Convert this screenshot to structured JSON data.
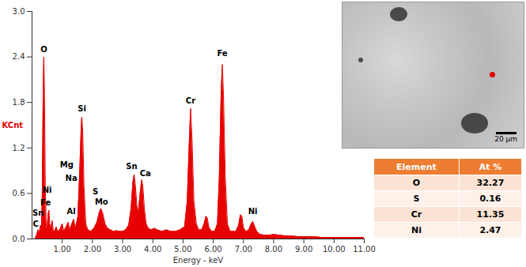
{
  "chart_data": {
    "type": "area",
    "xlabel": "Energy - keV",
    "ylabel": "KCnt",
    "color": "#e60000",
    "xlim": [
      0,
      11
    ],
    "xticks": [
      {
        "value": 1,
        "label": "1.00"
      },
      {
        "value": 2,
        "label": "2.00"
      },
      {
        "value": 3,
        "label": "3.00"
      },
      {
        "value": 4,
        "label": "4.00"
      },
      {
        "value": 5,
        "label": "5.00"
      },
      {
        "value": 6,
        "label": "6.00"
      },
      {
        "value": 7,
        "label": "7.00"
      },
      {
        "value": 8,
        "label": "8.00"
      },
      {
        "value": 9,
        "label": "9.00"
      },
      {
        "value": 10,
        "label": "10.00"
      },
      {
        "value": 11,
        "label": "11.00"
      }
    ],
    "ylim": [
      0,
      3
    ],
    "yticks": [
      {
        "value": 0,
        "label": "0.0"
      },
      0.6,
      1.2,
      1.8,
      2.4,
      {
        "value": 3,
        "label": "3.0"
      }
    ],
    "x": [
      0.1,
      0.15,
      0.2,
      0.24,
      0.28,
      0.31,
      0.34,
      0.37,
      0.39,
      0.41,
      0.44,
      0.47,
      0.5,
      0.53,
      0.56,
      0.59,
      0.63,
      0.67,
      0.7,
      0.75,
      0.8,
      0.85,
      0.92,
      1.0,
      1.05,
      1.12,
      1.2,
      1.25,
      1.32,
      1.38,
      1.44,
      1.52,
      1.58,
      1.63,
      1.65,
      1.68,
      1.72,
      1.78,
      1.85,
      1.95,
      2.05,
      2.15,
      2.22,
      2.28,
      2.34,
      2.42,
      2.5,
      2.6,
      2.7,
      2.8,
      2.9,
      3.0,
      3.1,
      3.2,
      3.28,
      3.34,
      3.38,
      3.42,
      3.47,
      3.52,
      3.58,
      3.63,
      3.67,
      3.72,
      3.78,
      3.85,
      3.95,
      4.05,
      4.15,
      4.3,
      4.45,
      4.6,
      4.75,
      4.9,
      5.05,
      5.14,
      5.2,
      5.25,
      5.3,
      5.36,
      5.44,
      5.52,
      5.62,
      5.7,
      5.76,
      5.8,
      5.86,
      5.95,
      6.05,
      6.14,
      6.2,
      6.26,
      6.3,
      6.34,
      6.4,
      6.47,
      6.56,
      6.65,
      6.75,
      6.84,
      6.9,
      6.95,
      7.0,
      7.08,
      7.18,
      7.26,
      7.31,
      7.36,
      7.44,
      7.55,
      7.7,
      7.85,
      8.0,
      8.2,
      8.4,
      8.6,
      8.8,
      9.0,
      9.3,
      9.6,
      9.9,
      10.2,
      10.5,
      10.8,
      11.0
    ],
    "values": [
      0,
      0.05,
      0.12,
      0.08,
      0.18,
      0.1,
      0.6,
      2.0,
      2.4,
      2.0,
      0.7,
      0.2,
      0.12,
      0.32,
      0.38,
      0.2,
      0.14,
      0.24,
      0.12,
      0.1,
      0.16,
      0.1,
      0.12,
      0.2,
      0.1,
      0.15,
      0.22,
      0.12,
      0.2,
      0.26,
      0.14,
      0.3,
      0.9,
      1.5,
      1.61,
      1.4,
      0.7,
      0.2,
      0.12,
      0.1,
      0.14,
      0.22,
      0.34,
      0.4,
      0.34,
      0.2,
      0.14,
      0.12,
      0.1,
      0.11,
      0.1,
      0.1,
      0.12,
      0.18,
      0.4,
      0.75,
      0.85,
      0.72,
      0.45,
      0.35,
      0.6,
      0.78,
      0.7,
      0.4,
      0.2,
      0.14,
      0.12,
      0.14,
      0.12,
      0.1,
      0.12,
      0.1,
      0.1,
      0.12,
      0.16,
      0.5,
      1.2,
      1.72,
      1.3,
      0.5,
      0.2,
      0.12,
      0.12,
      0.2,
      0.3,
      0.28,
      0.15,
      0.1,
      0.1,
      0.2,
      0.8,
      1.9,
      2.3,
      1.9,
      0.8,
      0.2,
      0.1,
      0.1,
      0.1,
      0.18,
      0.32,
      0.3,
      0.15,
      0.1,
      0.12,
      0.2,
      0.23,
      0.18,
      0.1,
      0.06,
      0.05,
      0.05,
      0.06,
      0.05,
      0.04,
      0.04,
      0.03,
      0.03,
      0.03,
      0.02,
      0.02,
      0.02,
      0.02,
      0.02,
      0.02
    ],
    "annotations": [
      {
        "text": "C",
        "x": 0.12,
        "y": 0.2
      },
      {
        "text": "Sn",
        "x": 0.2,
        "y": 0.34
      },
      {
        "text": "Ni",
        "x": 0.5,
        "y": 0.64
      },
      {
        "text": "Fe",
        "x": 0.45,
        "y": 0.48
      },
      {
        "text": "O",
        "x": 0.39,
        "y": 2.5
      },
      {
        "text": "Na",
        "x": 1.3,
        "y": 0.8
      },
      {
        "text": "Mg",
        "x": 1.15,
        "y": 0.98
      },
      {
        "text": "Al",
        "x": 1.3,
        "y": 0.36
      },
      {
        "text": "Si",
        "x": 1.65,
        "y": 1.72
      },
      {
        "text": "S",
        "x": 2.1,
        "y": 0.62
      },
      {
        "text": "Mo",
        "x": 2.3,
        "y": 0.49
      },
      {
        "text": "Sn",
        "x": 3.3,
        "y": 0.96
      },
      {
        "text": "Ca",
        "x": 3.75,
        "y": 0.86
      },
      {
        "text": "Cr",
        "x": 5.25,
        "y": 1.82
      },
      {
        "text": "Fe",
        "x": 6.3,
        "y": 2.45
      },
      {
        "text": "Ni",
        "x": 7.31,
        "y": 0.36
      }
    ]
  },
  "image": {
    "scale_bar": "20 µm"
  },
  "table": {
    "header": [
      "Element",
      "At %"
    ],
    "rows": [
      [
        "O",
        32.27
      ],
      [
        "S",
        0.16
      ],
      [
        "Cr",
        11.35
      ],
      [
        "Ni",
        2.47
      ]
    ]
  }
}
